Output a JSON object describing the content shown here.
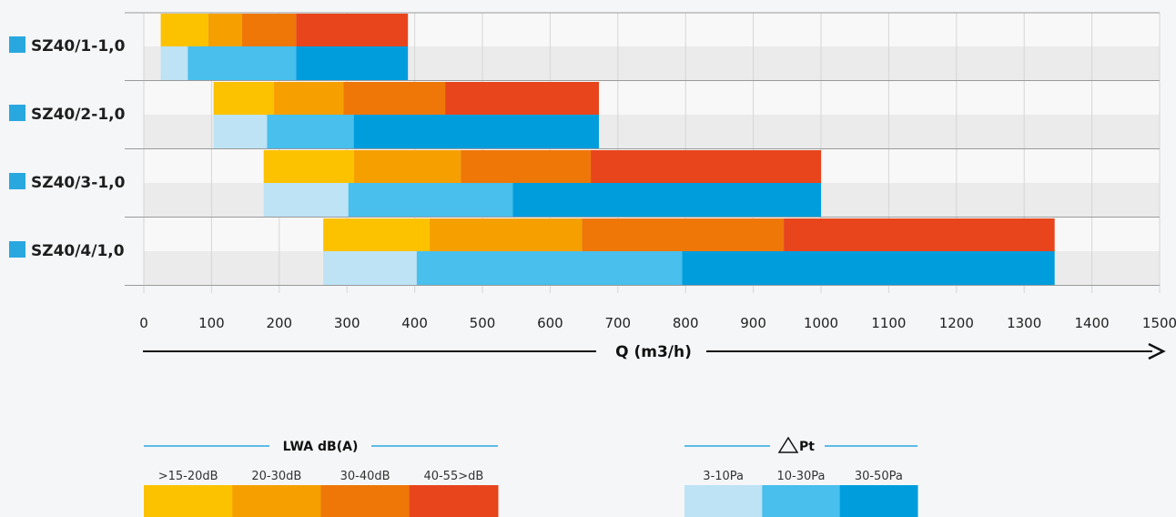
{
  "chart_data": {
    "type": "bar",
    "subtype": "horizontal-floating-stacked",
    "x_axis": {
      "label": "Q (m3/h)",
      "range": [
        0,
        1500
      ],
      "ticks": [
        0,
        100,
        200,
        300,
        400,
        500,
        600,
        700,
        800,
        900,
        1000,
        1100,
        1200,
        1300,
        1400,
        1500
      ],
      "grid": true
    },
    "categories": [
      "SZ40/1-1,0",
      "SZ40/2-1,0",
      "SZ40/3-1,0",
      "SZ40/4/1,0"
    ],
    "category_marker_color": "#29a8e0",
    "sound_bands": {
      "title": "LWA dB(A)",
      "labels": [
        ">15-20dB",
        "20-30dB",
        "30-40dB",
        "40-55>dB"
      ],
      "colors": [
        "#fcc200",
        "#f5a000",
        "#ee7708",
        "#e8451c"
      ]
    },
    "pressure_bands": {
      "title": "Pt",
      "title_symbol": "triangle",
      "labels": [
        "3-10Pa",
        "10-30Pa",
        "30-50Pa"
      ],
      "colors": [
        "#bde3f5",
        "#48bfed",
        "#009ddd"
      ]
    },
    "rows": [
      {
        "category": "SZ40/1-1,0",
        "sound": [
          25,
          95,
          145,
          225,
          390
        ],
        "pressure": [
          25,
          65,
          225,
          390
        ]
      },
      {
        "category": "SZ40/2-1,0",
        "sound": [
          103,
          192,
          295,
          445,
          672
        ],
        "pressure": [
          103,
          182,
          310,
          672
        ]
      },
      {
        "category": "SZ40/3-1,0",
        "sound": [
          177,
          310,
          468,
          660,
          1000
        ],
        "pressure": [
          177,
          302,
          545,
          1000
        ]
      },
      {
        "category": "SZ40/4/1,0",
        "sound": [
          265,
          422,
          647,
          945,
          1345
        ],
        "pressure": [
          265,
          403,
          795,
          1345
        ]
      }
    ]
  }
}
